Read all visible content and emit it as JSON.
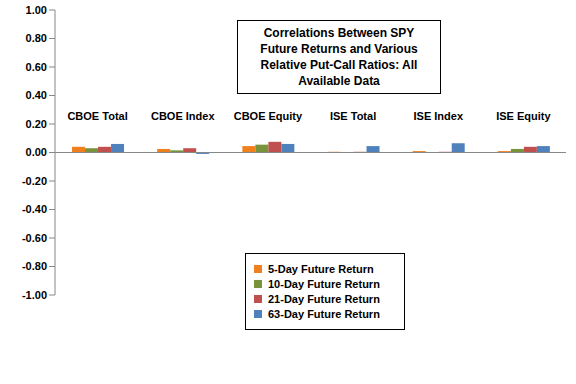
{
  "chart_data": {
    "type": "bar",
    "title": "Correlations Between SPY Future Returns and Various Relative Put-Call Ratios: All Available Data",
    "categories": [
      "CBOE Total",
      "CBOE Index",
      "CBOE Equity",
      "ISE Total",
      "ISE Index",
      "ISE Equity"
    ],
    "series": [
      {
        "name": "5-Day Future Return",
        "color": "#F07F1E",
        "values": [
          0.04,
          0.025,
          0.045,
          0.005,
          0.01,
          0.01
        ]
      },
      {
        "name": "10-Day Future Return",
        "color": "#77933C",
        "values": [
          0.03,
          0.015,
          0.055,
          0.0,
          0.0,
          0.025
        ]
      },
      {
        "name": "21-Day Future Return",
        "color": "#C0504D",
        "values": [
          0.04,
          0.03,
          0.075,
          0.005,
          0.005,
          0.04
        ]
      },
      {
        "name": "63-Day Future Return",
        "color": "#4F81BD",
        "values": [
          0.06,
          -0.01,
          0.06,
          0.045,
          0.065,
          0.045
        ]
      }
    ],
    "ylim": [
      -1,
      1
    ],
    "yticks": [
      {
        "value": -1,
        "label": "-1.00"
      },
      {
        "value": -0.8,
        "label": "-0.80"
      },
      {
        "value": -0.6,
        "label": "-0.60"
      },
      {
        "value": -0.4,
        "label": "-0.40"
      },
      {
        "value": -0.2,
        "label": "-0.20"
      },
      {
        "value": 0,
        "label": "0.00"
      },
      {
        "value": 0.2,
        "label": "0.20"
      },
      {
        "value": 0.4,
        "label": "0.40"
      },
      {
        "value": 0.6,
        "label": "0.60"
      },
      {
        "value": 0.8,
        "label": "0.80"
      },
      {
        "value": 1,
        "label": "1.00"
      }
    ],
    "grid": false,
    "legend": "bottom"
  }
}
